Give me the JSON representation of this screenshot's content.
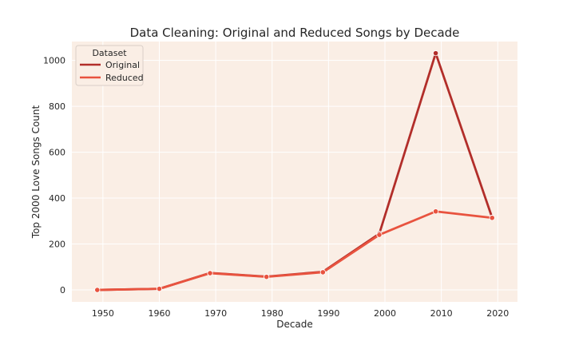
{
  "chart_data": {
    "type": "line",
    "title": "Data Cleaning: Original and Reduced Songs by Decade",
    "xlabel": "Decade",
    "ylabel": "Top 2000 Love Songs Count",
    "x": [
      1949,
      1960,
      1969,
      1979,
      1989,
      1999,
      2009,
      2019
    ],
    "xticks": [
      1950,
      1960,
      1970,
      1980,
      1990,
      2000,
      2010,
      2020
    ],
    "yticks": [
      0,
      200,
      400,
      600,
      800,
      1000
    ],
    "xlim": [
      1944.5,
      2023.5
    ],
    "ylim": [
      -52,
      1082
    ],
    "grid": true,
    "legend": {
      "title": "Dataset",
      "position": "top-left"
    },
    "series": [
      {
        "name": "Original",
        "color": "#b22e2a",
        "values": [
          0,
          5,
          74,
          58,
          79,
          245,
          1031,
          315
        ]
      },
      {
        "name": "Reduced",
        "color": "#e8533f",
        "values": [
          0,
          5,
          73,
          57,
          77,
          240,
          342,
          314
        ]
      }
    ],
    "background": "#faeee5"
  }
}
